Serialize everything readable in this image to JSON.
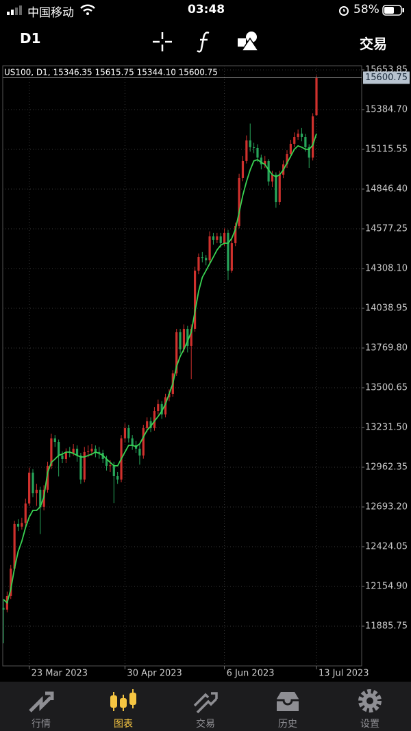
{
  "status_bar": {
    "carrier": "中国移动",
    "time": "03:48",
    "battery": "58%"
  },
  "toolbar": {
    "timeframe": "D1",
    "trade": "交易"
  },
  "chart_data": {
    "type": "candlestick",
    "header": "US100, D1, 15346.35 15615.75 15344.10 15600.75",
    "categories": [
      null,
      null,
      null,
      null,
      null,
      null,
      null,
      "23 Mar 2023",
      null,
      null,
      null,
      null,
      null,
      null,
      null,
      null,
      null,
      null,
      null,
      null,
      null,
      null,
      null,
      null,
      null,
      null,
      null,
      null,
      null,
      null,
      null,
      null,
      null,
      "30 Apr 2023",
      null,
      null,
      null,
      null,
      null,
      null,
      null,
      null,
      null,
      null,
      null,
      null,
      null,
      null,
      null,
      null,
      null,
      null,
      null,
      null,
      null,
      null,
      null,
      null,
      null,
      null,
      "6 Jun 2023",
      null,
      null,
      null,
      null,
      null,
      null,
      null,
      null,
      null,
      null,
      null,
      null,
      null,
      null,
      null,
      null,
      null,
      null,
      null,
      null,
      null,
      null,
      null,
      null,
      "13 Jul 2023"
    ],
    "open": [
      12010,
      11998,
      12090,
      12276,
      12578,
      12560,
      12585,
      12717,
      12926,
      12786,
      12810,
      12694,
      12810,
      12972,
      13158,
      13134,
      13042,
      13018,
      13065,
      13060,
      13088,
      13042,
      12879,
      13065,
      13070,
      13088,
      13065,
      13060,
      13018,
      12972,
      12975,
      12902,
      12879,
      13158,
      13227,
      13158,
      13111,
      13088,
      13042,
      13227,
      13274,
      13227,
      13343,
      13390,
      13320,
      13436,
      13459,
      13598,
      13877,
      13761,
      13900,
      13784,
      13900,
      14294,
      14387,
      14380,
      14364,
      14526,
      14503,
      14526,
      14480,
      14550,
      14294,
      14480,
      14596,
      14921,
      15037,
      15176,
      15130,
      15125,
      15060,
      15014,
      15037,
      14898,
      14944,
      14758,
      14944,
      15014,
      15083,
      15153,
      15199,
      15222,
      15199,
      15130,
      15060,
      15346.35
    ],
    "high": [
      12060,
      12120,
      12300,
      12600,
      12610,
      12620,
      12750,
      12960,
      12950,
      12850,
      12830,
      12840,
      13000,
      13190,
      13180,
      13150,
      13070,
      13090,
      13100,
      13120,
      13110,
      13060,
      13100,
      13110,
      13120,
      13110,
      13100,
      13080,
      13040,
      13010,
      13000,
      12930,
      13180,
      13260,
      13250,
      13180,
      13140,
      13120,
      13250,
      13300,
      13300,
      13370,
      13420,
      13410,
      13460,
      13490,
      13620,
      13900,
      13900,
      13930,
      13920,
      13930,
      14320,
      14410,
      14420,
      14400,
      14560,
      14550,
      14550,
      14550,
      14580,
      14570,
      14510,
      14620,
      14950,
      15070,
      15210,
      15290,
      15160,
      15150,
      15080,
      15070,
      15050,
      14970,
      14960,
      14970,
      15040,
      15110,
      15180,
      15230,
      15250,
      15260,
      15220,
      15150,
      15360,
      15615.75
    ],
    "low": [
      11770,
      11980,
      12070,
      12260,
      12530,
      12540,
      12560,
      12700,
      12760,
      12700,
      12510,
      12670,
      12790,
      12950,
      13100,
      12900,
      12990,
      12990,
      13030,
      13040,
      13000,
      12850,
      12860,
      13030,
      13040,
      13030,
      13020,
      12990,
      12940,
      12930,
      12720,
      12850,
      12860,
      13130,
      13130,
      13080,
      13060,
      12980,
      13020,
      13200,
      13200,
      13210,
      13320,
      13290,
      13300,
      13410,
      13440,
      13580,
      13730,
      13740,
      13740,
      13560,
      13880,
      14270,
      14350,
      14330,
      14340,
      14470,
      14480,
      14450,
      14460,
      14230,
      14280,
      14460,
      14580,
      14900,
      15020,
      15100,
      15090,
      15030,
      14980,
      14990,
      14870,
      14860,
      14720,
      14740,
      14920,
      14990,
      15060,
      15130,
      15180,
      15170,
      15100,
      14990,
      15040,
      15344.1
    ],
    "close": [
      11998,
      12090,
      12276,
      12578,
      12560,
      12585,
      12717,
      12926,
      12786,
      12810,
      12694,
      12810,
      12972,
      13158,
      13134,
      13042,
      13018,
      13065,
      13060,
      13088,
      13042,
      12879,
      13065,
      13070,
      13088,
      13065,
      13060,
      13018,
      12972,
      12975,
      12902,
      12879,
      13158,
      13227,
      13158,
      13111,
      13088,
      13042,
      13227,
      13274,
      13227,
      13343,
      13390,
      13320,
      13436,
      13459,
      13598,
      13877,
      13761,
      13900,
      13784,
      13900,
      14294,
      14387,
      14380,
      14364,
      14526,
      14503,
      14526,
      14480,
      14550,
      14294,
      14480,
      14596,
      14921,
      15037,
      15176,
      15130,
      15125,
      15060,
      15014,
      15037,
      14898,
      14944,
      14758,
      14944,
      15014,
      15083,
      15153,
      15199,
      15222,
      15199,
      15130,
      15060,
      15340,
      15600.75
    ],
    "up_color": "#d0312d",
    "down_color": "#27a55a",
    "ma": {
      "color": "#39d353",
      "values": [
        12067,
        12044,
        12137,
        12276,
        12392,
        12462,
        12554,
        12624,
        12670,
        12670,
        12694,
        12763,
        12926,
        12995,
        13018,
        13042,
        13051,
        13065,
        13065,
        13056,
        13042,
        13032,
        13032,
        13042,
        13051,
        13065,
        13056,
        13042,
        13018,
        12995,
        12972,
        12972,
        13018,
        13065,
        13111,
        13111,
        13102,
        13120,
        13167,
        13213,
        13241,
        13274,
        13306,
        13343,
        13390,
        13459,
        13529,
        13645,
        13714,
        13761,
        13816,
        13877,
        14016,
        14155,
        14248,
        14294,
        14341,
        14387,
        14434,
        14466,
        14480,
        14480,
        14512,
        14573,
        14688,
        14805,
        14897,
        14976,
        15037,
        15046,
        15027,
        15014,
        14976,
        14944,
        14930,
        14944,
        14976,
        15023,
        15069,
        15116,
        15139,
        15130,
        15116,
        15116,
        15144,
        15222
      ]
    },
    "ylim": [
      11616.6,
      15681.7
    ],
    "yticks": [
      15653.85,
      {
        "value": 15384.7,
        "label": "15384.70"
      },
      15115.55,
      {
        "value": 14846.4,
        "label": "14846.40"
      },
      14577.25,
      {
        "value": 14308.1,
        "label": "14308.10"
      },
      14038.95,
      {
        "value": 13769.8,
        "label": "13769.80"
      },
      13500.65,
      {
        "value": 13231.5,
        "label": "13231.50"
      },
      12962.35,
      {
        "value": 12693.2,
        "label": "12693.20"
      },
      12424.05,
      {
        "value": 12154.9,
        "label": "12154.90"
      },
      11885.75
    ],
    "grid": true
  },
  "tab_bar": {
    "tabs": [
      "行情",
      "图表",
      "交易",
      "历史",
      "设置"
    ],
    "active": 1
  }
}
